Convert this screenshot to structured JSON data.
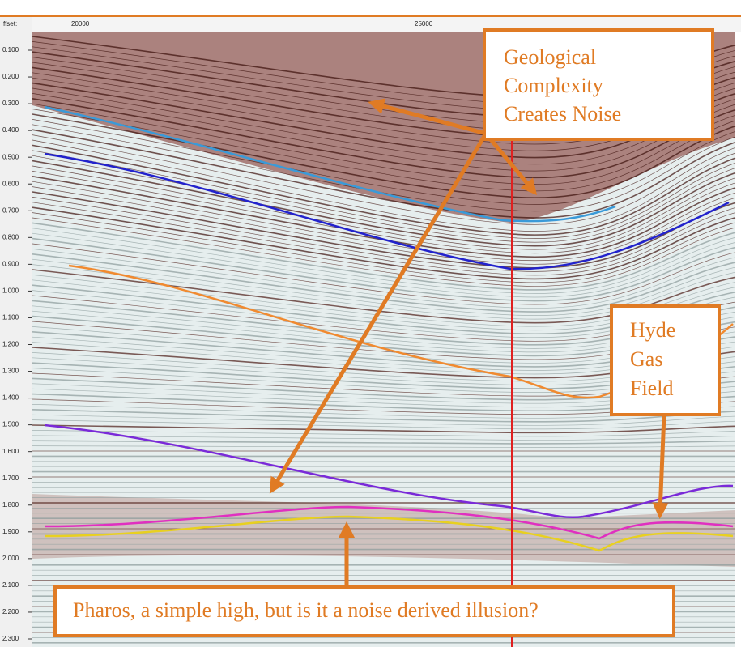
{
  "top_axis": {
    "label": "ffset:",
    "ticks": [
      "20000",
      "25000"
    ]
  },
  "left_axis": {
    "ticks": [
      "0.100",
      "0.200",
      "0.300",
      "0.400",
      "0.500",
      "0.600",
      "0.700",
      "0.800",
      "0.900",
      "1.000",
      "1.100",
      "1.200",
      "1.300",
      "1.400",
      "1.500",
      "1.600",
      "1.700",
      "1.800",
      "1.900",
      "2.000",
      "2.100",
      "2.200",
      "2.300"
    ]
  },
  "annotations": {
    "geological": [
      "Geological",
      "Complexity",
      "Creates Noise"
    ],
    "hyde": [
      "Hyde",
      "Gas",
      "Field"
    ],
    "pharos": "Pharos, a simple high, but is it a noise derived illusion?"
  }
}
